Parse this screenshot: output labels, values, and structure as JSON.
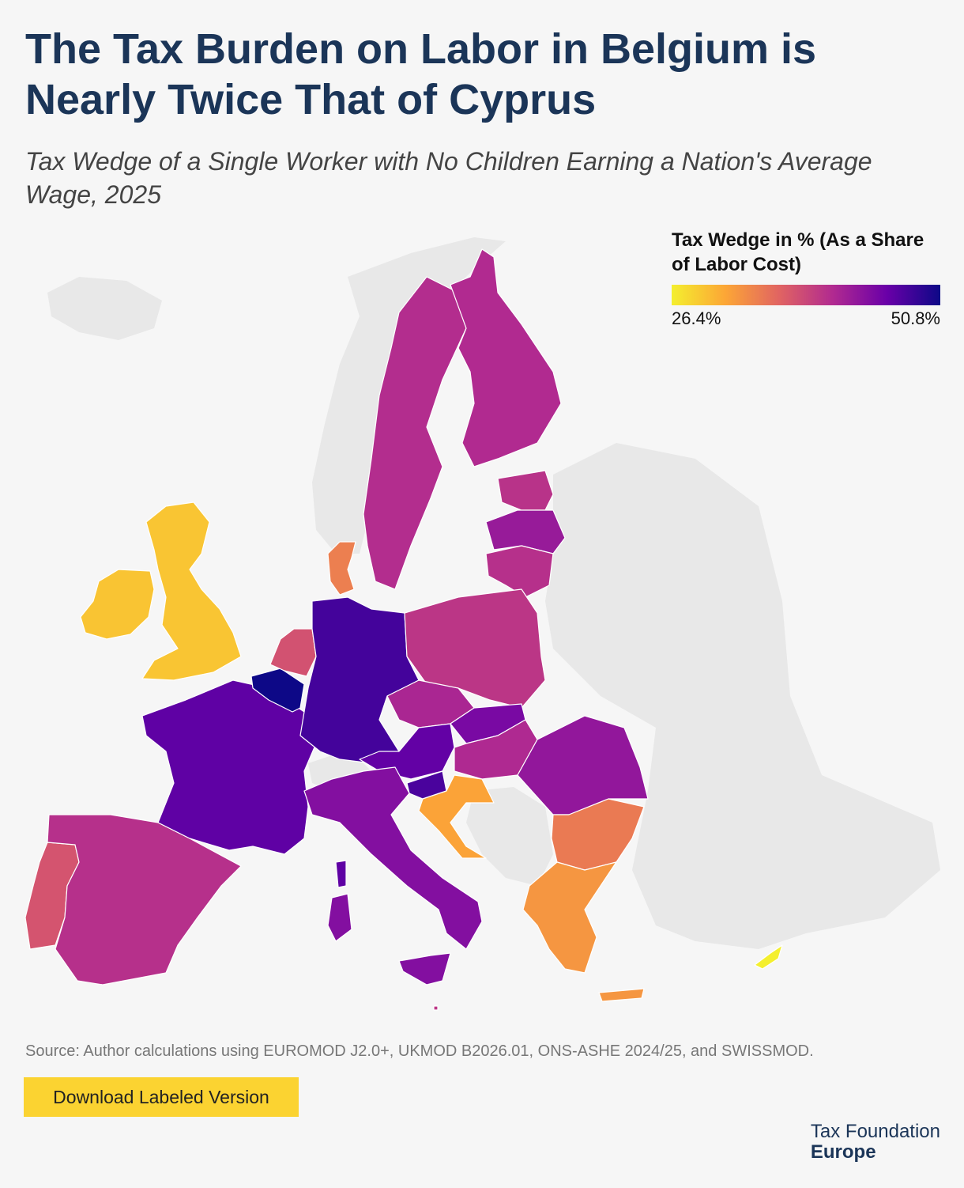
{
  "title": "The Tax Burden on Labor in Belgium is Nearly Twice That of Cyprus",
  "subtitle": "Tax Wedge of a Single Worker with No Children Earning a Nation's Average Wage, 2025",
  "legend": {
    "title": "Tax Wedge in % (As a Share of Labor Cost)",
    "min_label": "26.4%",
    "max_label": "50.8%",
    "min": 26.4,
    "max": 50.8,
    "scale_colors": [
      "#f4ef2e",
      "#fca636",
      "#e16462",
      "#b12a90",
      "#6a00a8",
      "#0d0887"
    ]
  },
  "map": {
    "no_data_color": "#e8e8e8",
    "countries": [
      {
        "id": "belgium",
        "value": 50.8
      },
      {
        "id": "germany",
        "value": 47.9
      },
      {
        "id": "slovenia",
        "value": 47.6
      },
      {
        "id": "france",
        "value": 46.5
      },
      {
        "id": "austria",
        "value": 46.3
      },
      {
        "id": "slovakia",
        "value": 44.9
      },
      {
        "id": "italy",
        "value": 44.2
      },
      {
        "id": "romania",
        "value": 43.2
      },
      {
        "id": "latvia",
        "value": 42.8
      },
      {
        "id": "czechia",
        "value": 41.5
      },
      {
        "id": "hungary",
        "value": 41.2
      },
      {
        "id": "finland",
        "value": 41.0
      },
      {
        "id": "sweden",
        "value": 40.8
      },
      {
        "id": "spain",
        "value": 40.5
      },
      {
        "id": "lithuania",
        "value": 40.5
      },
      {
        "id": "estonia",
        "value": 40.3
      },
      {
        "id": "poland",
        "value": 40.0
      },
      {
        "id": "malta",
        "value": 40.0
      },
      {
        "id": "netherlands",
        "value": 37.7
      },
      {
        "id": "portugal",
        "value": 37.5
      },
      {
        "id": "bulgaria",
        "value": 34.5
      },
      {
        "id": "denmark",
        "value": 34.2
      },
      {
        "id": "greece",
        "value": 32.5
      },
      {
        "id": "croatia",
        "value": 31.5
      },
      {
        "id": "ireland",
        "value": 29.3
      },
      {
        "id": "united-kingdom",
        "value": 29.2
      },
      {
        "id": "cyprus",
        "value": 26.4
      }
    ]
  },
  "source": "Source: Author calculations using EUROMOD J2.0+, UKMOD B2026.01, ONS-ASHE 2024/25, and SWISSMOD.",
  "download_label": "Download Labeled Version",
  "brand": {
    "line1": "Tax Foundation",
    "line2": "Europe"
  }
}
